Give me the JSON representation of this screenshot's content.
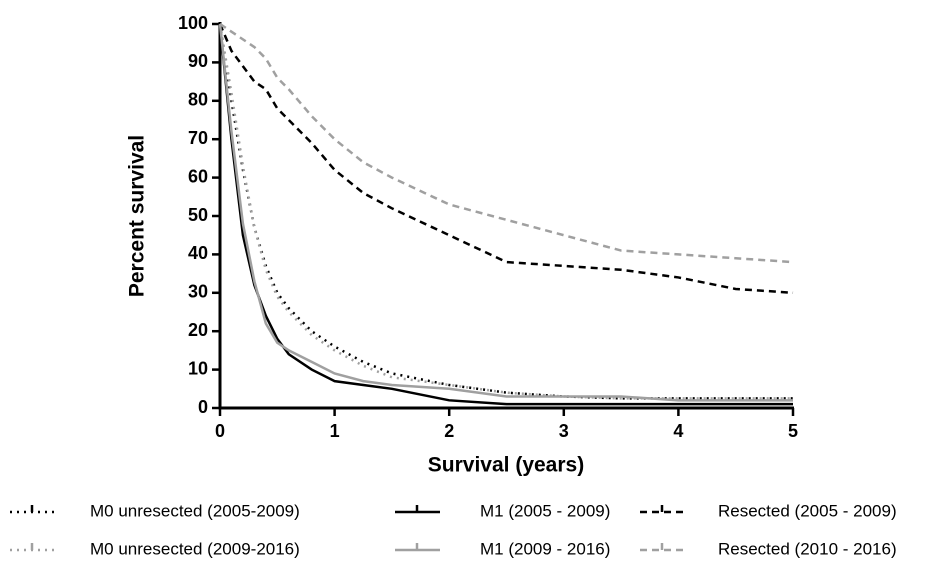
{
  "chart_data": {
    "type": "line",
    "x_label": "Survival (years)",
    "y_label": "Percent survival",
    "x": [
      0,
      0.1,
      0.2,
      0.3,
      0.4,
      0.5,
      0.6,
      0.8,
      1.0,
      1.25,
      1.5,
      2,
      2.5,
      3,
      3.5,
      4,
      4.5,
      5
    ],
    "series": [
      {
        "name": "M0 unresected (2005-2009)",
        "color": "#000000",
        "line_style": "dotted",
        "values": [
          100,
          80,
          62,
          47,
          37,
          30,
          26,
          20,
          16,
          12,
          9,
          6,
          4,
          3,
          2.5,
          2.5,
          2.5,
          2.5
        ]
      },
      {
        "name": "M1 (2005 - 2009)",
        "color": "#000000",
        "line_style": "solid",
        "values": [
          100,
          70,
          45,
          32,
          24,
          18,
          14,
          10,
          7,
          6,
          5,
          2,
          1,
          1,
          1,
          1,
          1,
          1
        ]
      },
      {
        "name": "Resected (2005 - 2009)",
        "color": "#000000",
        "line_style": "dashed",
        "values": [
          100,
          93,
          89,
          85,
          83,
          78,
          75,
          69,
          62,
          56,
          52,
          45,
          38,
          37,
          36,
          34,
          31,
          30
        ]
      },
      {
        "name": "M0 unresected (2009-2016)",
        "color": "#a0a0a0",
        "line_style": "dotted",
        "values": [
          100,
          82,
          63,
          47,
          36,
          29,
          25,
          19,
          15,
          11,
          8,
          6,
          4,
          3,
          2.5,
          2.5,
          2.5,
          2.5
        ]
      },
      {
        "name": "M1 (2009 - 2016)",
        "color": "#a0a0a0",
        "line_style": "solid",
        "values": [
          100,
          72,
          48,
          33,
          22,
          17,
          15,
          12,
          9,
          7,
          6,
          5,
          3,
          3,
          3,
          2,
          2,
          2
        ]
      },
      {
        "name": "Resected (2010 - 2016)",
        "color": "#a0a0a0",
        "line_style": "dashed",
        "values": [
          100,
          98,
          96,
          94,
          91,
          86,
          83,
          76,
          70,
          64,
          60,
          53,
          49,
          45,
          41,
          40,
          39,
          38
        ]
      }
    ],
    "xlim": [
      0,
      5
    ],
    "xticks": [
      0,
      1,
      2,
      3,
      4,
      5
    ],
    "ylim": [
      0,
      100
    ],
    "yticks": [
      0,
      10,
      20,
      30,
      40,
      50,
      60,
      70,
      80,
      90,
      100
    ],
    "legend": "bottom",
    "grid": false
  }
}
